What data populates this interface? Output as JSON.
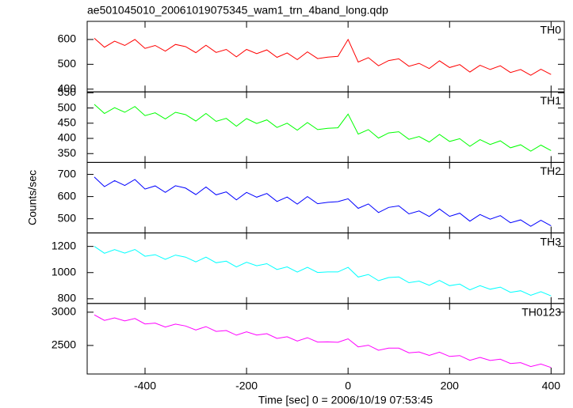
{
  "chart_data": {
    "type": "line",
    "title": "ae501045010_20061019075345_wam1_trn_4band_long.qdp",
    "xlabel": "Time [sec] 0 = 2006/10/19 07:53:45",
    "ylabel": "Counts/sec",
    "xlim": [
      -514,
      426
    ],
    "xticks": [
      -400,
      -200,
      0,
      200,
      400
    ],
    "x": [
      -500,
      -480,
      -460,
      -440,
      -420,
      -400,
      -380,
      -360,
      -340,
      -320,
      -300,
      -280,
      -260,
      -240,
      -220,
      -200,
      -180,
      -160,
      -140,
      -120,
      -100,
      -80,
      -60,
      -40,
      -20,
      0,
      20,
      40,
      60,
      80,
      100,
      120,
      140,
      160,
      180,
      200,
      220,
      240,
      260,
      280,
      300,
      320,
      340,
      360,
      380,
      400
    ],
    "series": [
      {
        "name": "TH0",
        "color": "#ff0000",
        "ylim": [
          389,
          673
        ],
        "yticks": [
          400,
          500,
          600
        ],
        "values": [
          605,
          569,
          593,
          576,
          600,
          564,
          576,
          553,
          580,
          571,
          547,
          577,
          548,
          560,
          530,
          560,
          543,
          558,
          528,
          546,
          519,
          550,
          523,
          529,
          532,
          600,
          509,
          527,
          494,
          515,
          522,
          492,
          504,
          483,
          514,
          487,
          499,
          469,
          496,
          479,
          494,
          467,
          479,
          456,
          480,
          459
        ]
      },
      {
        "name": "TH1",
        "color": "#00ff00",
        "ylim": [
          321,
          553
        ],
        "yticks": [
          350,
          400,
          450,
          500,
          550
        ],
        "values": [
          512,
          482,
          501,
          486,
          505,
          475,
          484,
          464,
          486,
          478,
          457,
          482,
          456,
          466,
          440,
          465,
          449,
          461,
          436,
          450,
          427,
          452,
          429,
          433,
          435,
          480,
          414,
          429,
          401,
          418,
          422,
          397,
          406,
          388,
          413,
          390,
          399,
          374,
          396,
          380,
          392,
          369,
          379,
          358,
          378,
          360
        ]
      },
      {
        "name": "TH2",
        "color": "#0000ff",
        "ylim": [
          436,
          754
        ],
        "yticks": [
          500,
          600,
          700
        ],
        "values": [
          688,
          645,
          672,
          650,
          677,
          634,
          648,
          619,
          649,
          638,
          609,
          643,
          608,
          621,
          585,
          619,
          597,
          614,
          578,
          598,
          566,
          600,
          568,
          574,
          577,
          590,
          547,
          567,
          528,
          551,
          558,
          522,
          535,
          510,
          544,
          511,
          525,
          489,
          519,
          498,
          514,
          482,
          495,
          466,
          493,
          468
        ]
      },
      {
        "name": "TH3",
        "color": "#00ffff",
        "ylim": [
          764,
          1303
        ],
        "yticks": [
          800,
          1000,
          1200
        ],
        "values": [
          1200,
          1148,
          1176,
          1149,
          1177,
          1125,
          1137,
          1102,
          1134,
          1118,
          1082,
          1118,
          1075,
          1087,
          1043,
          1079,
          1052,
          1068,
          1024,
          1044,
          1004,
          1041,
          1001,
          1005,
          1005,
          1040,
          966,
          986,
          938,
          962,
          967,
          923,
          935,
          903,
          940,
          900,
          912,
          868,
          900,
          873,
          889,
          849,
          861,
          826,
          854,
          822
        ]
      },
      {
        "name": "TH0123",
        "color": "#ff00ff",
        "ylim": [
          2071,
          3131
        ],
        "yticks": [
          2500,
          3000
        ],
        "values": [
          2960,
          2877,
          2915,
          2868,
          2905,
          2823,
          2836,
          2777,
          2821,
          2792,
          2733,
          2783,
          2712,
          2725,
          2655,
          2704,
          2657,
          2677,
          2606,
          2631,
          2567,
          2616,
          2551,
          2553,
          2548,
          2600,
          2479,
          2504,
          2427,
          2459,
          2460,
          2389,
          2403,
          2350,
          2399,
          2335,
          2348,
          2277,
          2321,
          2274,
          2293,
          2229,
          2242,
          2183,
          2221,
          2168
        ]
      }
    ]
  }
}
